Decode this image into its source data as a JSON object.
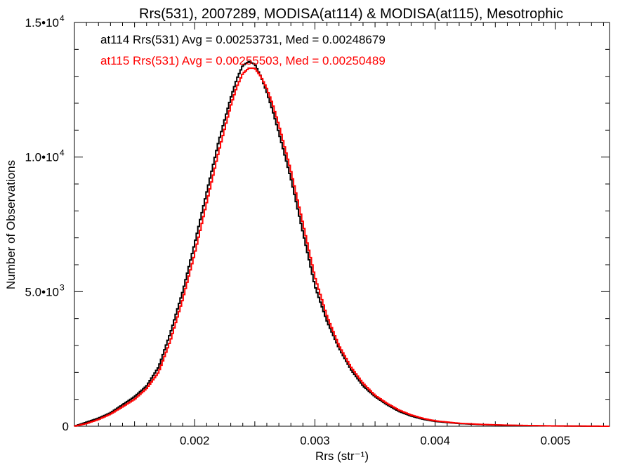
{
  "chart_data": {
    "type": "line",
    "title": "Rrs(531), 2007289, MODISA(at114) & MODISA(at115), Mesotrophic",
    "xlabel": "Rrs (str⁻¹)",
    "ylabel": "Number of Observations",
    "xlim": [
      0.001,
      0.00545
    ],
    "ylim": [
      0,
      15000
    ],
    "x_ticks": [
      {
        "value": 0.002,
        "label": "0.002"
      },
      {
        "value": 0.003,
        "label": "0.003"
      },
      {
        "value": 0.004,
        "label": "0.004"
      },
      {
        "value": 0.005,
        "label": "0.005"
      }
    ],
    "y_ticks": [
      {
        "value": 0,
        "label": "0"
      },
      {
        "value": 5000,
        "label": "5.0•10",
        "exp": "3"
      },
      {
        "value": 10000,
        "label": "1.0•10",
        "exp": "4"
      },
      {
        "value": 15000,
        "label": "1.5•10",
        "exp": "4"
      }
    ],
    "grid": false,
    "legend_position": "top-left",
    "annotations": [
      {
        "text": "at114 Rrs(531) Avg = 0.00253731, Med = 0.00248679",
        "color": "#000000"
      },
      {
        "text": "at115 Rrs(531) Avg = 0.00255503, Med = 0.00250489",
        "color": "#ff0000"
      }
    ],
    "series": [
      {
        "color": "#000000",
        "x": [
          0.001,
          0.0011,
          0.0012,
          0.0013,
          0.0014,
          0.0015,
          0.0016,
          0.0017,
          0.0018,
          0.0019,
          0.002,
          0.0021,
          0.0022,
          0.0023,
          0.00235,
          0.0024,
          0.00245,
          0.0025,
          0.00255,
          0.0026,
          0.00265,
          0.0027,
          0.0028,
          0.0029,
          0.003,
          0.0031,
          0.0032,
          0.0033,
          0.0034,
          0.0035,
          0.0036,
          0.0037,
          0.0038,
          0.0039,
          0.004,
          0.0042,
          0.0044,
          0.0046,
          0.0048,
          0.005,
          0.0052,
          0.00545
        ],
        "y": [
          0,
          150,
          300,
          500,
          800,
          1100,
          1500,
          2200,
          3500,
          5000,
          6800,
          8700,
          10600,
          12200,
          12900,
          13400,
          13550,
          13450,
          13000,
          12400,
          11700,
          10900,
          9200,
          7200,
          5200,
          3900,
          2900,
          2100,
          1500,
          1100,
          800,
          550,
          380,
          260,
          180,
          100,
          60,
          35,
          20,
          10,
          5,
          0
        ]
      },
      {
        "color": "#ff0000",
        "x": [
          0.001,
          0.0011,
          0.0012,
          0.0013,
          0.0014,
          0.0015,
          0.0016,
          0.0017,
          0.0018,
          0.0019,
          0.002,
          0.0021,
          0.0022,
          0.0023,
          0.00235,
          0.0024,
          0.00245,
          0.0025,
          0.00255,
          0.0026,
          0.00265,
          0.0027,
          0.0028,
          0.0029,
          0.003,
          0.0031,
          0.0032,
          0.0033,
          0.0034,
          0.0035,
          0.0036,
          0.0037,
          0.0038,
          0.0039,
          0.004,
          0.0042,
          0.0044,
          0.0046,
          0.0048,
          0.005,
          0.0052,
          0.00545
        ],
        "y": [
          0,
          100,
          250,
          450,
          720,
          1000,
          1400,
          2000,
          3200,
          4700,
          6400,
          8300,
          10200,
          11900,
          12600,
          13100,
          13300,
          13300,
          13000,
          12550,
          11950,
          11200,
          9500,
          7550,
          5550,
          4100,
          3000,
          2200,
          1600,
          1150,
          850,
          600,
          420,
          290,
          200,
          110,
          65,
          40,
          25,
          12,
          6,
          0
        ]
      }
    ]
  }
}
